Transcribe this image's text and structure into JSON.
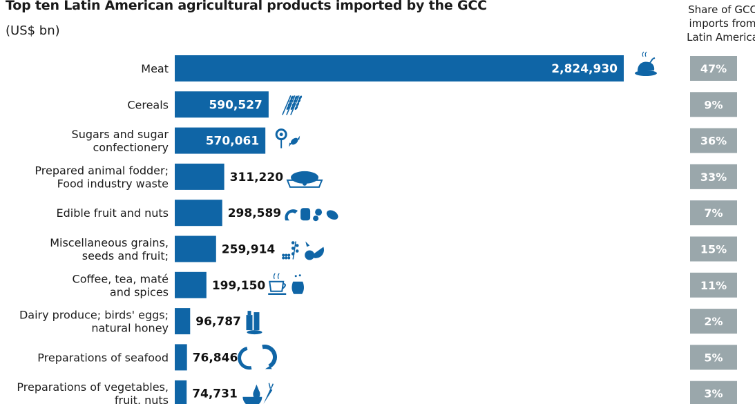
{
  "header": {
    "title": "Top ten Latin American agricultural products imported by the GCC",
    "subtitle": "(US$ bn)",
    "share_lines": [
      "Share of  GCC",
      "imports from",
      "Latin America"
    ]
  },
  "colors": {
    "bar": "#0f65a6",
    "badge": "#9aa7ab",
    "icon": "#0f65a6",
    "value_inside": "#ffffff",
    "value_outside": "#111111"
  },
  "chart_data": {
    "type": "bar",
    "orientation": "horizontal",
    "categories": [
      [
        "Meat"
      ],
      [
        "Cereals"
      ],
      [
        "Sugars and sugar",
        "confectionery"
      ],
      [
        "Prepared animal fodder;",
        "Food industry waste"
      ],
      [
        "Edible fruit and nuts"
      ],
      [
        "Miscellaneous grains,",
        "seeds and fruit;"
      ],
      [
        "Coffee, tea, maté",
        "and spices"
      ],
      [
        "Dairy produce; birds' eggs;",
        "natural honey"
      ],
      [
        "Preparations of seafood"
      ],
      [
        "Preparations of vegetables,",
        "fruit, nuts"
      ]
    ],
    "values": [
      2824930,
      590527,
      570061,
      311220,
      298589,
      259914,
      199150,
      96787,
      76846,
      74731
    ],
    "value_labels": [
      "2,824,930",
      "590,527",
      "570,061",
      "311,220",
      "298,589",
      "259,914",
      "199,150",
      "96,787",
      "76,846",
      "74,731"
    ],
    "share_labels": [
      "47%",
      "9%",
      "36%",
      "33%",
      "7%",
      "15%",
      "11%",
      "2%",
      "5%",
      "3%"
    ],
    "icons": [
      "roast-chicken-icon",
      "wheat-icon",
      "candy-icon",
      "pet-food-bowl-icon",
      "fruit-nuts-icon",
      "grains-fruit-icon",
      "coffee-tea-icon",
      "dairy-icon",
      "seafood-icon",
      "vegetables-icon"
    ],
    "xlim": [
      0,
      2824930
    ]
  }
}
